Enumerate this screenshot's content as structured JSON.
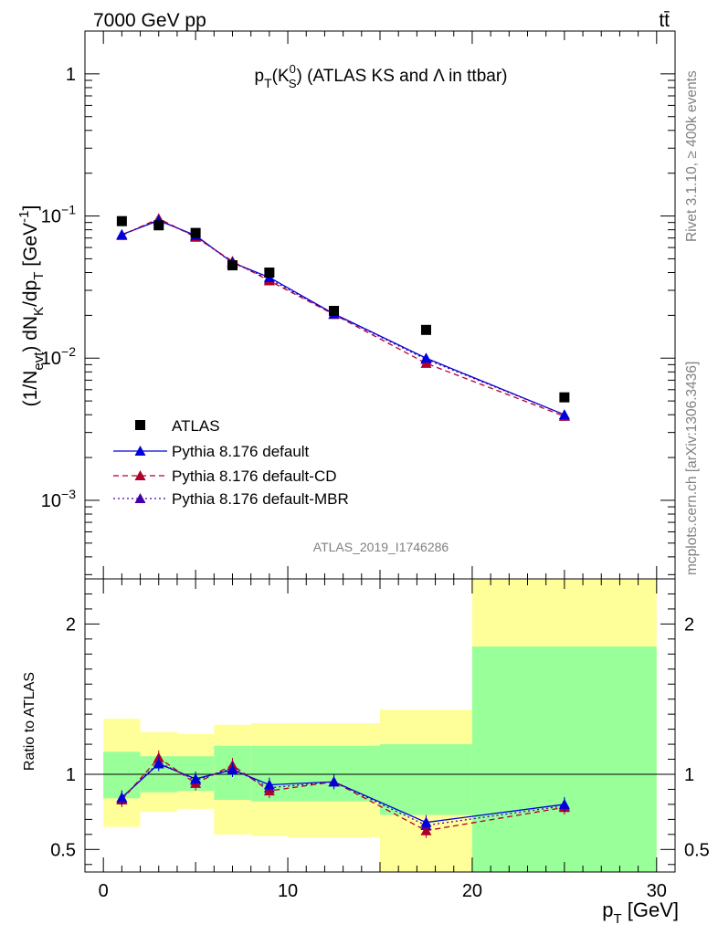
{
  "header": {
    "left": "7000 GeV pp",
    "right": "tt̄"
  },
  "side_labels": {
    "rivet": "Rivet 3.1.10, ≥ 400k events",
    "mcplots": "mcplots.cern.ch [arXiv:1306.3436]"
  },
  "analysis_id": "ATLAS_2019_I1746286",
  "chart_data": [
    {
      "type": "scatter",
      "title": "p_T(K⁰_S) (ATLAS KS and Λ in ttbar)",
      "title_parts": {
        "a": "p",
        "a_sub": "T",
        "b": "(K",
        "b_sup": "0",
        "b_sub": "S",
        "c": ") (ATLAS KS and Λ in ttbar)"
      },
      "ylabel": "(1/N_evt) dN_K/dp_T [GeV⁻¹]",
      "ylabel_parts": {
        "a": "(1/N",
        "a_sub": "evt",
        "b": ") dN",
        "b_sub": "K",
        "c": "/dp",
        "c_sub": "T",
        "d": " [GeV",
        "d_sup": "-1",
        "e": "]"
      },
      "y_scale": "log",
      "xlim": [
        -1,
        31
      ],
      "ylim": [
        0.00028,
        2.0
      ],
      "y_tick_labels": [
        {
          "value": 1,
          "label": "1"
        },
        {
          "value": 0.1,
          "base": "10",
          "exp": "−1"
        },
        {
          "value": 0.01,
          "base": "10",
          "exp": "−2"
        },
        {
          "value": 0.001,
          "base": "10",
          "exp": "−3"
        }
      ],
      "legend_position": "bottom-left",
      "series": [
        {
          "name": "ATLAS",
          "marker": "square",
          "color": "#000000",
          "x": [
            1,
            3,
            5,
            7,
            9,
            12.5,
            17.5,
            25
          ],
          "y": [
            0.092,
            0.086,
            0.076,
            0.045,
            0.04,
            0.0215,
            0.0158,
            0.0053
          ]
        },
        {
          "name": "Pythia 8.176 default",
          "marker": "triangle",
          "line": "solid",
          "color": "#0000dd",
          "x": [
            1,
            3,
            5,
            7,
            9,
            12.5,
            17.5,
            25
          ],
          "y": [
            0.074,
            0.093,
            0.073,
            0.047,
            0.037,
            0.0205,
            0.01,
            0.004
          ]
        },
        {
          "name": "Pythia 8.176 default-CD",
          "marker": "triangle",
          "line": "dashed",
          "color": "#b00028",
          "x": [
            1,
            3,
            5,
            7,
            9,
            12.5,
            17.5,
            25
          ],
          "y": [
            0.073,
            0.096,
            0.071,
            0.048,
            0.035,
            0.0203,
            0.0092,
            0.0039
          ]
        },
        {
          "name": "Pythia 8.176 default-MBR",
          "marker": "triangle",
          "line": "dotted",
          "color": "#4400aa",
          "x": [
            1,
            3,
            5,
            7,
            9,
            12.5,
            17.5,
            25
          ],
          "y": [
            0.074,
            0.094,
            0.072,
            0.047,
            0.036,
            0.0204,
            0.0098,
            0.004
          ]
        }
      ]
    },
    {
      "type": "line",
      "ylabel": "Ratio to ATLAS",
      "xlabel": "p_T [GeV]",
      "xlabel_parts": {
        "a": "p",
        "a_sub": "T",
        "b": " [GeV]"
      },
      "xlim": [
        -1,
        31
      ],
      "ylim": [
        0.35,
        2.3
      ],
      "x_ticks": [
        0,
        10,
        20,
        30
      ],
      "y_ticks": [
        0.5,
        1,
        2
      ],
      "reference_line": 1,
      "bands": {
        "edges": [
          0,
          2,
          4,
          6,
          8,
          10,
          15,
          20,
          30
        ],
        "inner_low": [
          0.84,
          0.88,
          0.89,
          0.83,
          0.82,
          0.82,
          0.73,
          0.35
        ],
        "inner_high": [
          1.15,
          1.12,
          1.12,
          1.19,
          1.19,
          1.19,
          1.2,
          1.85
        ],
        "outer_low": [
          0.65,
          0.75,
          0.77,
          0.6,
          0.59,
          0.58,
          0.35,
          0.35
        ],
        "outer_high": [
          1.37,
          1.28,
          1.27,
          1.33,
          1.34,
          1.34,
          1.43,
          2.3
        ],
        "inner_color": "#99ff99",
        "outer_color": "#ffff99"
      },
      "series": [
        {
          "name": "Pythia 8.176 default",
          "marker": "triangle",
          "line": "solid",
          "color": "#0000dd",
          "x": [
            1,
            3,
            5,
            7,
            9,
            12.5,
            17.5,
            25
          ],
          "y": [
            0.845,
            1.07,
            0.97,
            1.03,
            0.93,
            0.95,
            0.68,
            0.8
          ]
        },
        {
          "name": "Pythia 8.176 default-CD",
          "marker": "triangle",
          "line": "dashed",
          "color": "#b00028",
          "x": [
            1,
            3,
            5,
            7,
            9,
            12.5,
            17.5,
            25
          ],
          "y": [
            0.83,
            1.11,
            0.94,
            1.06,
            0.89,
            0.95,
            0.625,
            0.78
          ]
        },
        {
          "name": "Pythia 8.176 default-MBR",
          "marker": "triangle",
          "line": "dotted",
          "color": "#4400aa",
          "x": [
            1,
            3,
            5,
            7,
            9,
            12.5,
            17.5,
            25
          ],
          "y": [
            0.84,
            1.08,
            0.96,
            1.04,
            0.91,
            0.95,
            0.66,
            0.79
          ]
        }
      ]
    }
  ]
}
